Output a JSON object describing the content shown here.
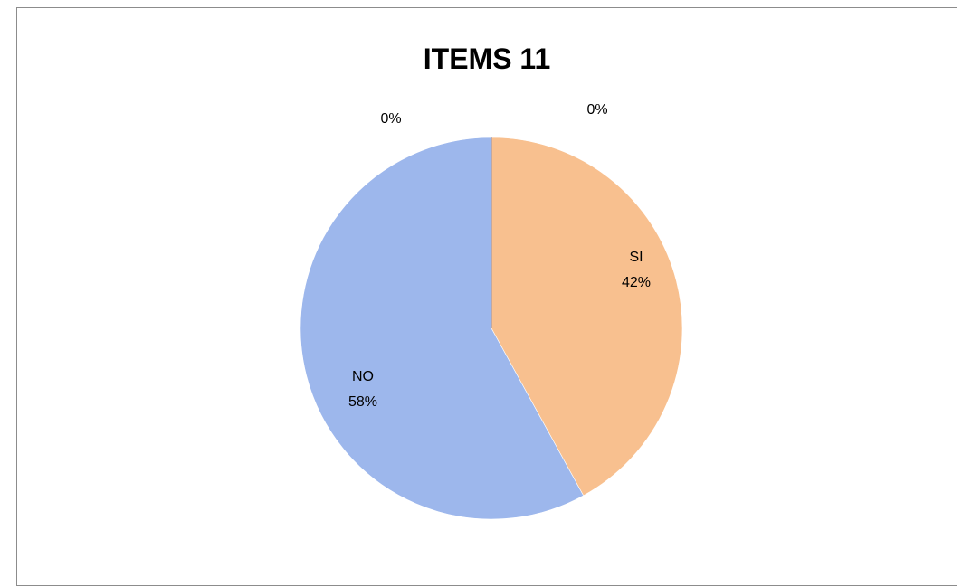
{
  "chart_data": {
    "type": "pie",
    "title": "ITEMS 11",
    "categories": [
      "SI",
      "NO",
      "",
      ""
    ],
    "values": [
      42,
      58,
      0,
      0
    ],
    "data_labels": [
      {
        "category": "SI",
        "percent": "42%"
      },
      {
        "category": "NO",
        "percent": "58%"
      },
      {
        "category": "",
        "percent": "0%"
      },
      {
        "category": "",
        "percent": "0%"
      }
    ],
    "colors": [
      "#f8c08f",
      "#9db7ec",
      "#a5a5a5",
      "#ffc000"
    ],
    "legend": "none",
    "start_angle": "12 o'clock",
    "direction": "clockwise"
  }
}
